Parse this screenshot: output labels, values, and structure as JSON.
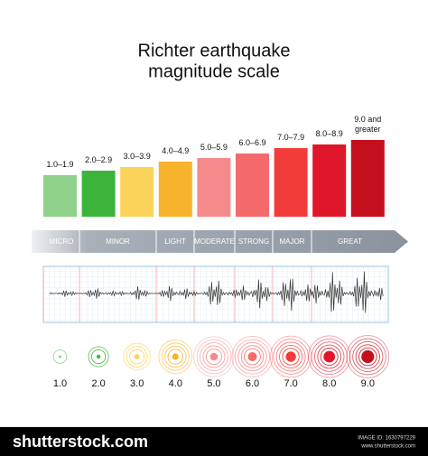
{
  "title": [
    "Richter earthquake",
    "magnitude scale"
  ],
  "levels": [
    {
      "range": "1.0–1.9",
      "magnitude": "1.0"
    },
    {
      "range": "2.0–2.9",
      "magnitude": "2.0"
    },
    {
      "range": "3.0–3.9",
      "magnitude": "3.0"
    },
    {
      "range": "4.0–4.9",
      "magnitude": "4.0"
    },
    {
      "range": "5.0–5.9",
      "magnitude": "5.0"
    },
    {
      "range": "6.0–6.9",
      "magnitude": "6.0"
    },
    {
      "range": "7.0–7.9",
      "magnitude": "7.0"
    },
    {
      "range": "8.0–8.9",
      "magnitude": "8.0"
    },
    {
      "range": "9.0 and greater",
      "magnitude": "9.0"
    }
  ],
  "classes": [
    "MICRO",
    "MINOR",
    "LIGHT",
    "MODERATE",
    "STRONG",
    "MAJOR",
    "GREAT"
  ],
  "footer": {
    "brand": "shutterstock.com",
    "image_id": "IMAGE ID: 1630797229",
    "url": "www.shutterstock.com"
  }
}
